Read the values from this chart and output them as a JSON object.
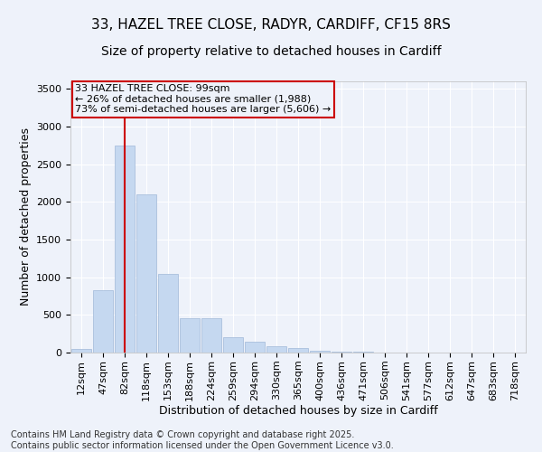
{
  "title_line1": "33, HAZEL TREE CLOSE, RADYR, CARDIFF, CF15 8RS",
  "title_line2": "Size of property relative to detached houses in Cardiff",
  "xlabel": "Distribution of detached houses by size in Cardiff",
  "ylabel": "Number of detached properties",
  "categories": [
    "12sqm",
    "47sqm",
    "82sqm",
    "118sqm",
    "153sqm",
    "188sqm",
    "224sqm",
    "259sqm",
    "294sqm",
    "330sqm",
    "365sqm",
    "400sqm",
    "436sqm",
    "471sqm",
    "506sqm",
    "541sqm",
    "577sqm",
    "612sqm",
    "647sqm",
    "683sqm",
    "718sqm"
  ],
  "values": [
    50,
    830,
    2750,
    2100,
    1050,
    460,
    460,
    200,
    150,
    80,
    55,
    30,
    15,
    8,
    4,
    2,
    2,
    1,
    1,
    1,
    0
  ],
  "bar_color": "#c5d8f0",
  "bar_edge_color": "#a0b8d8",
  "vline_x_index": 2,
  "vline_color": "#cc0000",
  "annotation_text_line1": "33 HAZEL TREE CLOSE: 99sqm",
  "annotation_text_line2": "← 26% of detached houses are smaller (1,988)",
  "annotation_text_line3": "73% of semi-detached houses are larger (5,606) →",
  "annotation_box_color": "#cc0000",
  "ylim": [
    0,
    3600
  ],
  "yticks": [
    0,
    500,
    1000,
    1500,
    2000,
    2500,
    3000,
    3500
  ],
  "footnote_line1": "Contains HM Land Registry data © Crown copyright and database right 2025.",
  "footnote_line2": "Contains public sector information licensed under the Open Government Licence v3.0.",
  "bg_color": "#eef2fa",
  "grid_color": "#ffffff",
  "title_fontsize": 11,
  "subtitle_fontsize": 10,
  "axis_label_fontsize": 9,
  "tick_fontsize": 8,
  "annotation_fontsize": 8,
  "footnote_fontsize": 7
}
